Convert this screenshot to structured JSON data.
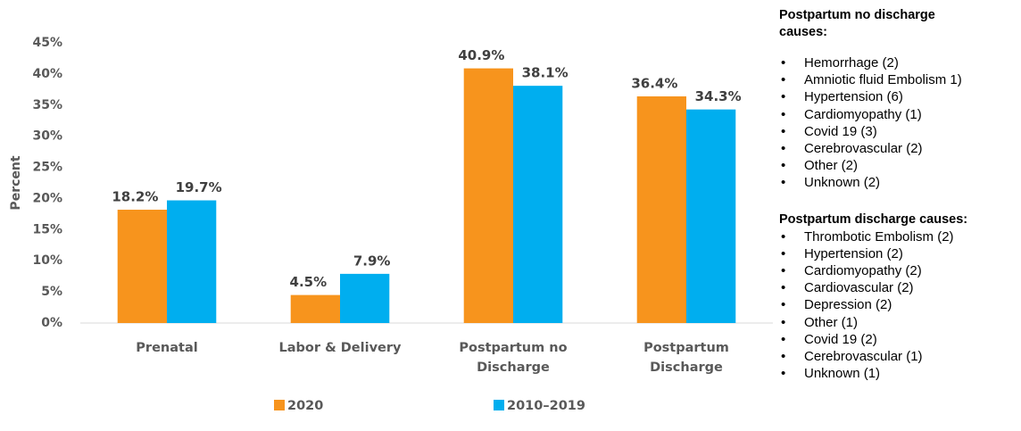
{
  "chart_data": {
    "type": "bar",
    "y_label": "Percent",
    "categories": [
      "Prenatal",
      "Labor & Delivery",
      "Postpartum no Discharge",
      "Postpartum Discharge"
    ],
    "series": [
      {
        "name": "2020",
        "color": "#f7941d",
        "values": [
          18.2,
          4.5,
          40.9,
          36.4
        ],
        "value_labels": [
          "18.2%",
          "4.5%",
          "40.9%",
          "36.4%"
        ]
      },
      {
        "name": "2010–2019",
        "color": "#00aeef",
        "values": [
          19.7,
          7.9,
          38.1,
          34.3
        ],
        "value_labels": [
          "19.7%",
          "7.9%",
          "38.1%",
          "34.3%"
        ]
      }
    ],
    "ylim": [
      0,
      45
    ],
    "yticks": [
      {
        "value": 0,
        "label": "0%"
      },
      {
        "value": 5,
        "label": "5%"
      },
      {
        "value": 10,
        "label": "10%"
      },
      {
        "value": 15,
        "label": "15%"
      },
      {
        "value": 20,
        "label": "20%"
      },
      {
        "value": 25,
        "label": "25%"
      },
      {
        "value": 30,
        "label": "30%"
      },
      {
        "value": 35,
        "label": "35%"
      },
      {
        "value": 40,
        "label": "40%"
      },
      {
        "value": 45,
        "label": "45%"
      }
    ],
    "grid": false,
    "legend": "bottom"
  },
  "notes": [
    {
      "heading": "Postpartum no discharge causes:",
      "items": [
        "Hemorrhage (2)",
        "Amniotic fluid Embolism 1)",
        "Hypertension (6)",
        "Cardiomyopathy (1)",
        "Covid 19 (3)",
        "Cerebrovascular (2)",
        "Other (2)",
        "Unknown (2)"
      ]
    },
    {
      "heading": "Postpartum discharge causes:",
      "items": [
        "Thrombotic Embolism (2)",
        "Hypertension (2)",
        "Cardiomyopathy (2)",
        "Cardiovascular (2)",
        "Depression (2)",
        "Other (1)",
        "Covid 19 (2)",
        "Cerebrovascular (1)",
        "Unknown (1)"
      ]
    }
  ]
}
